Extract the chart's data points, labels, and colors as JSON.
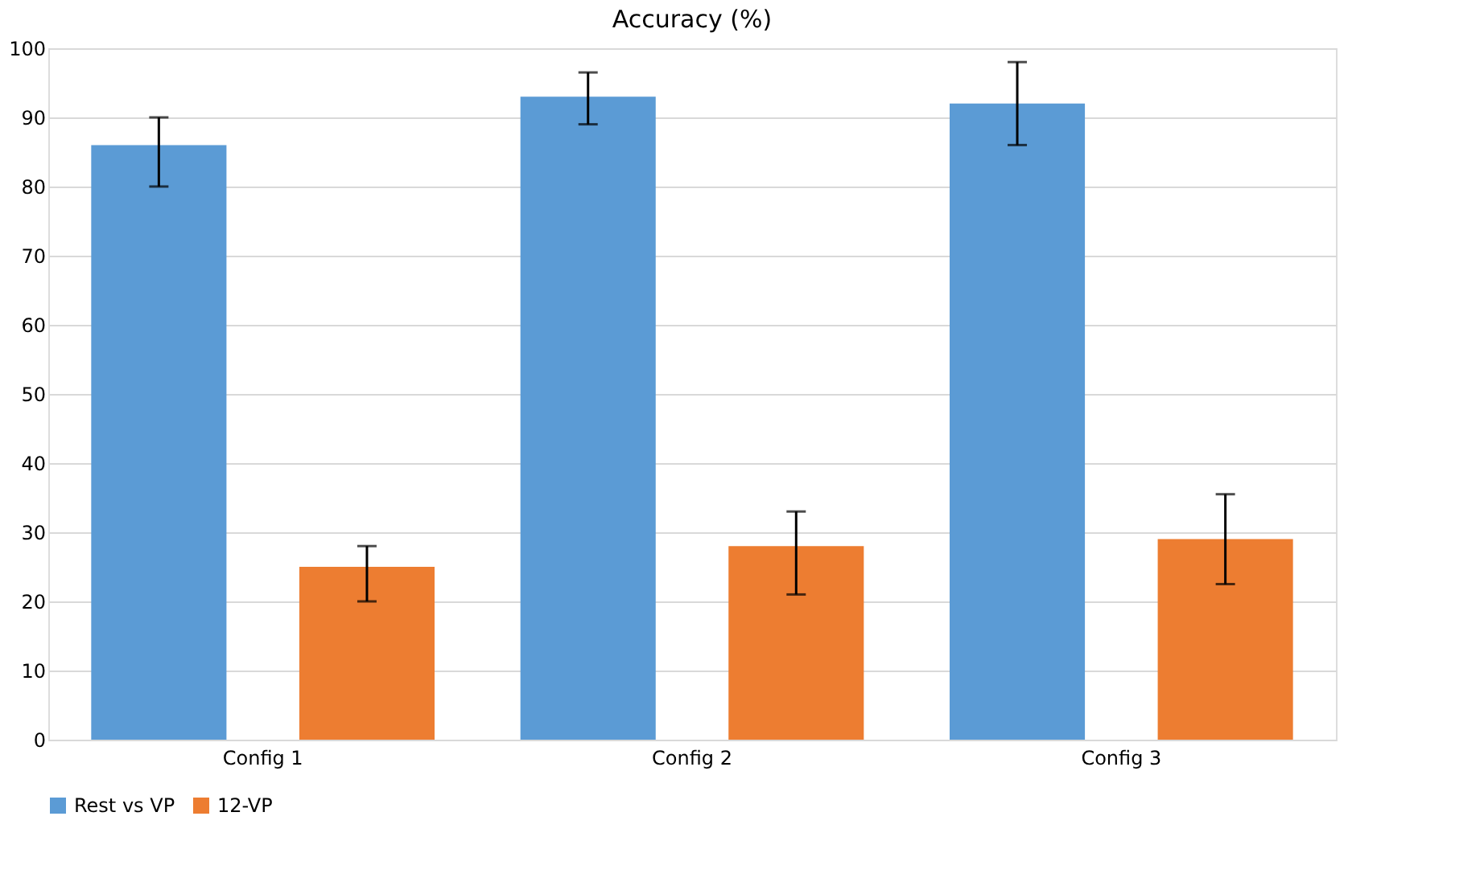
{
  "chart_data": {
    "type": "bar",
    "title": "Accuracy (%)",
    "categories": [
      "Config 1",
      "Config 2",
      "Config 3"
    ],
    "series": [
      {
        "name": "Rest vs VP",
        "color": "#5b9bd5",
        "values": [
          86,
          93,
          92
        ],
        "errors": [
          [
            80,
            90
          ],
          [
            89,
            96.5
          ],
          [
            86,
            98
          ]
        ]
      },
      {
        "name": "12-VP",
        "color": "#ed7d31",
        "values": [
          25,
          28,
          29
        ],
        "errors": [
          [
            20,
            28
          ],
          [
            21,
            33
          ],
          [
            22.5,
            35.5
          ]
        ]
      }
    ],
    "ylim": [
      0,
      100
    ],
    "yticks": [
      0,
      10,
      20,
      30,
      40,
      50,
      60,
      70,
      80,
      90,
      100
    ],
    "grid": "y",
    "legend": "bottom"
  }
}
